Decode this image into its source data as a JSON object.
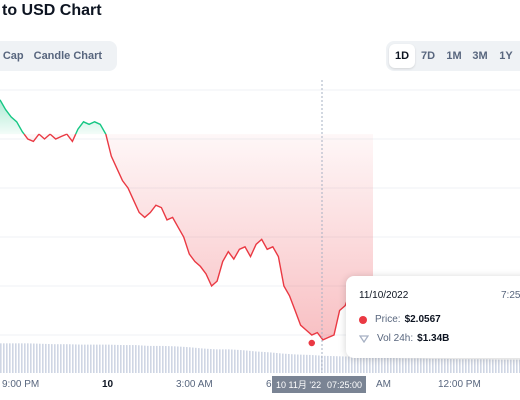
{
  "header": {
    "title": "to USD Chart"
  },
  "chart_tabs": {
    "market_cap": "et Cap",
    "candle_chart": "Candle Chart"
  },
  "ranges": [
    {
      "label": "1D",
      "active": true
    },
    {
      "label": "7D",
      "active": false
    },
    {
      "label": "1M",
      "active": false
    },
    {
      "label": "3M",
      "active": false
    },
    {
      "label": "1Y",
      "active": false
    }
  ],
  "colors": {
    "up_line": "#16c784",
    "down_line": "#ea3943",
    "volume": "#cfd6e4",
    "grid": "#eff2f5",
    "crosshair": "#a6b0c3"
  },
  "chart_data": {
    "type": "area",
    "x_axis_labels": [
      "9:00 PM",
      "10",
      "3:00 AM",
      "6",
      "AM",
      "12:00 PM"
    ],
    "baseline_price_level": 0.82,
    "price_series": [
      0.96,
      0.92,
      0.89,
      0.87,
      0.83,
      0.8,
      0.79,
      0.82,
      0.8,
      0.82,
      0.8,
      0.81,
      0.82,
      0.79,
      0.84,
      0.87,
      0.86,
      0.87,
      0.86,
      0.82,
      0.73,
      0.68,
      0.63,
      0.6,
      0.55,
      0.5,
      0.48,
      0.5,
      0.53,
      0.52,
      0.47,
      0.48,
      0.44,
      0.4,
      0.33,
      0.3,
      0.28,
      0.25,
      0.2,
      0.22,
      0.3,
      0.34,
      0.31,
      0.35,
      0.36,
      0.32,
      0.37,
      0.39,
      0.35,
      0.36,
      0.32,
      0.2,
      0.16,
      0.1,
      0.04,
      0.02,
      0.0,
      0.01,
      -0.02,
      -0.01,
      0.0,
      0.1,
      0.12,
      0.18,
      0.16,
      0.14,
      0.12,
      0.1
    ],
    "volume_series": [
      0.69,
      0.69,
      0.69,
      0.68,
      0.67,
      0.67,
      0.66,
      0.66,
      0.66,
      0.65,
      0.65,
      0.63,
      0.63,
      0.62,
      0.6,
      0.57,
      0.55,
      0.55,
      0.53,
      0.5,
      0.48,
      0.45,
      0.43,
      0.42,
      0.4,
      0.39,
      0.38,
      0.37,
      0.36,
      0.35,
      0.34,
      0.34,
      0.33,
      0.33,
      0.32,
      0.32,
      0.32,
      0.31,
      0.31,
      0.31
    ],
    "tooltip": {
      "date": "11/10/2022",
      "time": "7:25",
      "price_label": "Price:",
      "price_value": "$2.0567",
      "volume_label": "Vol 24h:",
      "volume_value": "$1.34B"
    },
    "crosshair": {
      "date": "10 11月 '22",
      "time": "07:25:00"
    }
  }
}
